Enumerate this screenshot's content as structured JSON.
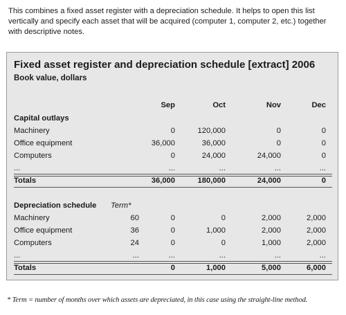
{
  "intro": "This combines a fixed asset register with a depreciation schedule. It helps to open this list vertically and specify each asset that will be acquired (computer 1, computer 2, etc.) together with descriptive notes.",
  "table": {
    "title": "Fixed asset register and depreciation schedule [extract] 2006",
    "subtitle": "Book value, dollars",
    "columns": [
      "Sep",
      "Oct",
      "Nov",
      "Dec"
    ],
    "capital_outlays": {
      "heading": "Capital outlays",
      "rows": [
        {
          "label": "Machinery",
          "values": [
            "0",
            "120,000",
            "0",
            "0"
          ]
        },
        {
          "label": "Office equipment",
          "values": [
            "36,000",
            "36,000",
            "0",
            "0"
          ]
        },
        {
          "label": "Computers",
          "values": [
            "0",
            "24,000",
            "24,000",
            "0"
          ]
        },
        {
          "label": "...",
          "values": [
            "...",
            "...",
            "...",
            "..."
          ]
        }
      ],
      "totals": {
        "label": "Totals",
        "values": [
          "36,000",
          "180,000",
          "24,000",
          "0"
        ]
      }
    },
    "depreciation": {
      "heading": "Depreciation schedule",
      "term_heading": "Term*",
      "rows": [
        {
          "label": "Machinery",
          "term": "60",
          "values": [
            "0",
            "0",
            "2,000",
            "2,000"
          ]
        },
        {
          "label": "Office equipment",
          "term": "36",
          "values": [
            "0",
            "1,000",
            "2,000",
            "2,000"
          ]
        },
        {
          "label": "Computers",
          "term": "24",
          "values": [
            "0",
            "0",
            "1,000",
            "2,000"
          ]
        },
        {
          "label": "...",
          "term": "...",
          "values": [
            "...",
            "...",
            "...",
            "..."
          ]
        }
      ],
      "totals": {
        "label": "Totals",
        "values": [
          "0",
          "1,000",
          "5,000",
          "6,000"
        ]
      }
    }
  },
  "footnote": "* Term = number of months over which assets are depreciated, in this case using the straight-line method."
}
